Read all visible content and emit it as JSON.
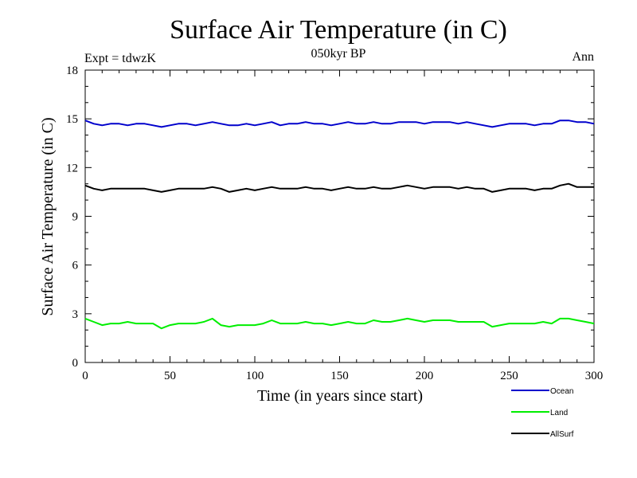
{
  "chart_data": {
    "type": "line",
    "title": "Surface Air Temperature (in C)",
    "subtitle": "050kyr BP",
    "annotation_left": "Expt = tdwzK",
    "annotation_right": "Ann",
    "xlabel": "Time (in years since start)",
    "ylabel": "Surface Air Temperature (in C)",
    "xlim": [
      0,
      300
    ],
    "ylim": [
      0,
      18
    ],
    "xticks": [
      0,
      50,
      100,
      150,
      200,
      250,
      300
    ],
    "yticks": [
      0,
      3,
      6,
      9,
      12,
      15,
      18
    ],
    "grid": false,
    "legend_position": "bottom-right",
    "x": [
      0,
      5,
      10,
      15,
      20,
      25,
      30,
      35,
      40,
      45,
      50,
      55,
      60,
      65,
      70,
      75,
      80,
      85,
      90,
      95,
      100,
      105,
      110,
      115,
      120,
      125,
      130,
      135,
      140,
      145,
      150,
      155,
      160,
      165,
      170,
      175,
      180,
      185,
      190,
      195,
      200,
      205,
      210,
      215,
      220,
      225,
      230,
      235,
      240,
      245,
      250,
      255,
      260,
      265,
      270,
      275,
      280,
      285,
      290,
      295,
      300
    ],
    "series": [
      {
        "name": "Ocean",
        "color": "#0000cc",
        "values": [
          14.9,
          14.7,
          14.6,
          14.7,
          14.7,
          14.6,
          14.7,
          14.7,
          14.6,
          14.5,
          14.6,
          14.7,
          14.7,
          14.6,
          14.7,
          14.8,
          14.7,
          14.6,
          14.6,
          14.7,
          14.6,
          14.7,
          14.8,
          14.6,
          14.7,
          14.7,
          14.8,
          14.7,
          14.7,
          14.6,
          14.7,
          14.8,
          14.7,
          14.7,
          14.8,
          14.7,
          14.7,
          14.8,
          14.8,
          14.8,
          14.7,
          14.8,
          14.8,
          14.8,
          14.7,
          14.8,
          14.7,
          14.6,
          14.5,
          14.6,
          14.7,
          14.7,
          14.7,
          14.6,
          14.7,
          14.7,
          14.9,
          14.9,
          14.8,
          14.8,
          14.7
        ]
      },
      {
        "name": "Land",
        "color": "#00ee00",
        "values": [
          2.7,
          2.5,
          2.3,
          2.4,
          2.4,
          2.5,
          2.4,
          2.4,
          2.4,
          2.1,
          2.3,
          2.4,
          2.4,
          2.4,
          2.5,
          2.7,
          2.3,
          2.2,
          2.3,
          2.3,
          2.3,
          2.4,
          2.6,
          2.4,
          2.4,
          2.4,
          2.5,
          2.4,
          2.4,
          2.3,
          2.4,
          2.5,
          2.4,
          2.4,
          2.6,
          2.5,
          2.5,
          2.6,
          2.7,
          2.6,
          2.5,
          2.6,
          2.6,
          2.6,
          2.5,
          2.5,
          2.5,
          2.5,
          2.2,
          2.3,
          2.4,
          2.4,
          2.4,
          2.4,
          2.5,
          2.4,
          2.7,
          2.7,
          2.6,
          2.5,
          2.4
        ]
      },
      {
        "name": "AllSurf",
        "color": "#000000",
        "values": [
          10.9,
          10.7,
          10.6,
          10.7,
          10.7,
          10.7,
          10.7,
          10.7,
          10.6,
          10.5,
          10.6,
          10.7,
          10.7,
          10.7,
          10.7,
          10.8,
          10.7,
          10.5,
          10.6,
          10.7,
          10.6,
          10.7,
          10.8,
          10.7,
          10.7,
          10.7,
          10.8,
          10.7,
          10.7,
          10.6,
          10.7,
          10.8,
          10.7,
          10.7,
          10.8,
          10.7,
          10.7,
          10.8,
          10.9,
          10.8,
          10.7,
          10.8,
          10.8,
          10.8,
          10.7,
          10.8,
          10.7,
          10.7,
          10.5,
          10.6,
          10.7,
          10.7,
          10.7,
          10.6,
          10.7,
          10.7,
          10.9,
          11.0,
          10.8,
          10.8,
          10.8
        ]
      }
    ]
  }
}
